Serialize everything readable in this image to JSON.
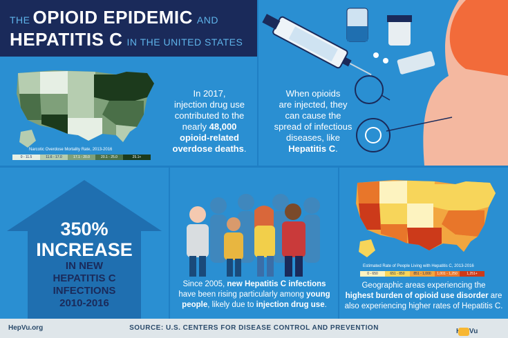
{
  "title": {
    "line1_big": "OPIOID EPIDEMIC",
    "line1_pre": "THE",
    "line1_post": "AND",
    "line2_big": "HEPATITIS C",
    "line2_post": "IN THE UNITED STATES"
  },
  "panel1": {
    "stat_text_1": "In 2017,",
    "stat_text_2": "injection drug use",
    "stat_text_3": "contributed to the",
    "stat_text_4": "nearly",
    "stat_highlight": "48,000",
    "stat_text_5": "opioid-related",
    "stat_text_6": "overdose deaths",
    "map_caption": "Narcotic Overdose Mortality Rate, 2013-2016",
    "legend": [
      {
        "label": "0 - 11.5",
        "color": "#e6efe4"
      },
      {
        "label": "11.6 - 17.0",
        "color": "#b6cdb0"
      },
      {
        "label": "17.1 - 20.0",
        "color": "#7fa07a"
      },
      {
        "label": "20.1 - 25.0",
        "color": "#4a6f48"
      },
      {
        "label": "25.1+",
        "color": "#1c3a1c"
      }
    ]
  },
  "panel2": {
    "text_1": "When opioids",
    "text_2": "are injected, they",
    "text_3": "can cause the",
    "text_4": "spread of infectious",
    "text_5": "diseases, like",
    "text_highlight": "Hepatitis C"
  },
  "panel3": {
    "big_percent": "350%",
    "big_word": "INCREASE",
    "line_1": "IN NEW",
    "line_2": "HEPATITIS C",
    "line_3": "INFECTIONS",
    "line_4": "2010-2016"
  },
  "panel4": {
    "text_1": "Since 2005,",
    "text_hl1": "new Hepatitis C infections",
    "text_2": "have been rising particularly among",
    "text_hl2": "young",
    "text_hl3": "people",
    "text_3": ", likely due to",
    "text_hl4": "injection drug use",
    "text_4": "."
  },
  "panel5": {
    "map_caption": "Estimated Rate of People Living with Hepatitis C, 2013-2016",
    "legend": [
      {
        "label": "0 - 650",
        "color": "#fdf3c0"
      },
      {
        "label": "651 - 850",
        "color": "#f7d55a"
      },
      {
        "label": "851 - 1,000",
        "color": "#f2a640"
      },
      {
        "label": "1,001 - 1,250",
        "color": "#e8762a"
      },
      {
        "label": "1,251+",
        "color": "#cc3a1a"
      }
    ],
    "text_1": "Geographic areas experiencing the",
    "text_hl": "highest burden of opioid use disorder",
    "text_2": "are",
    "text_3": "also experiencing higher rates of Hepatitis C."
  },
  "footer": {
    "left": "HepVu.org",
    "center": "SOURCE: U.S. CENTERS FOR DISEASE CONTROL AND PREVENTION",
    "brand": "HepVu"
  },
  "colors": {
    "navy": "#1a2a5a",
    "panel_blue": "#2a8fd2",
    "accent_orange": "#f26b3a"
  }
}
